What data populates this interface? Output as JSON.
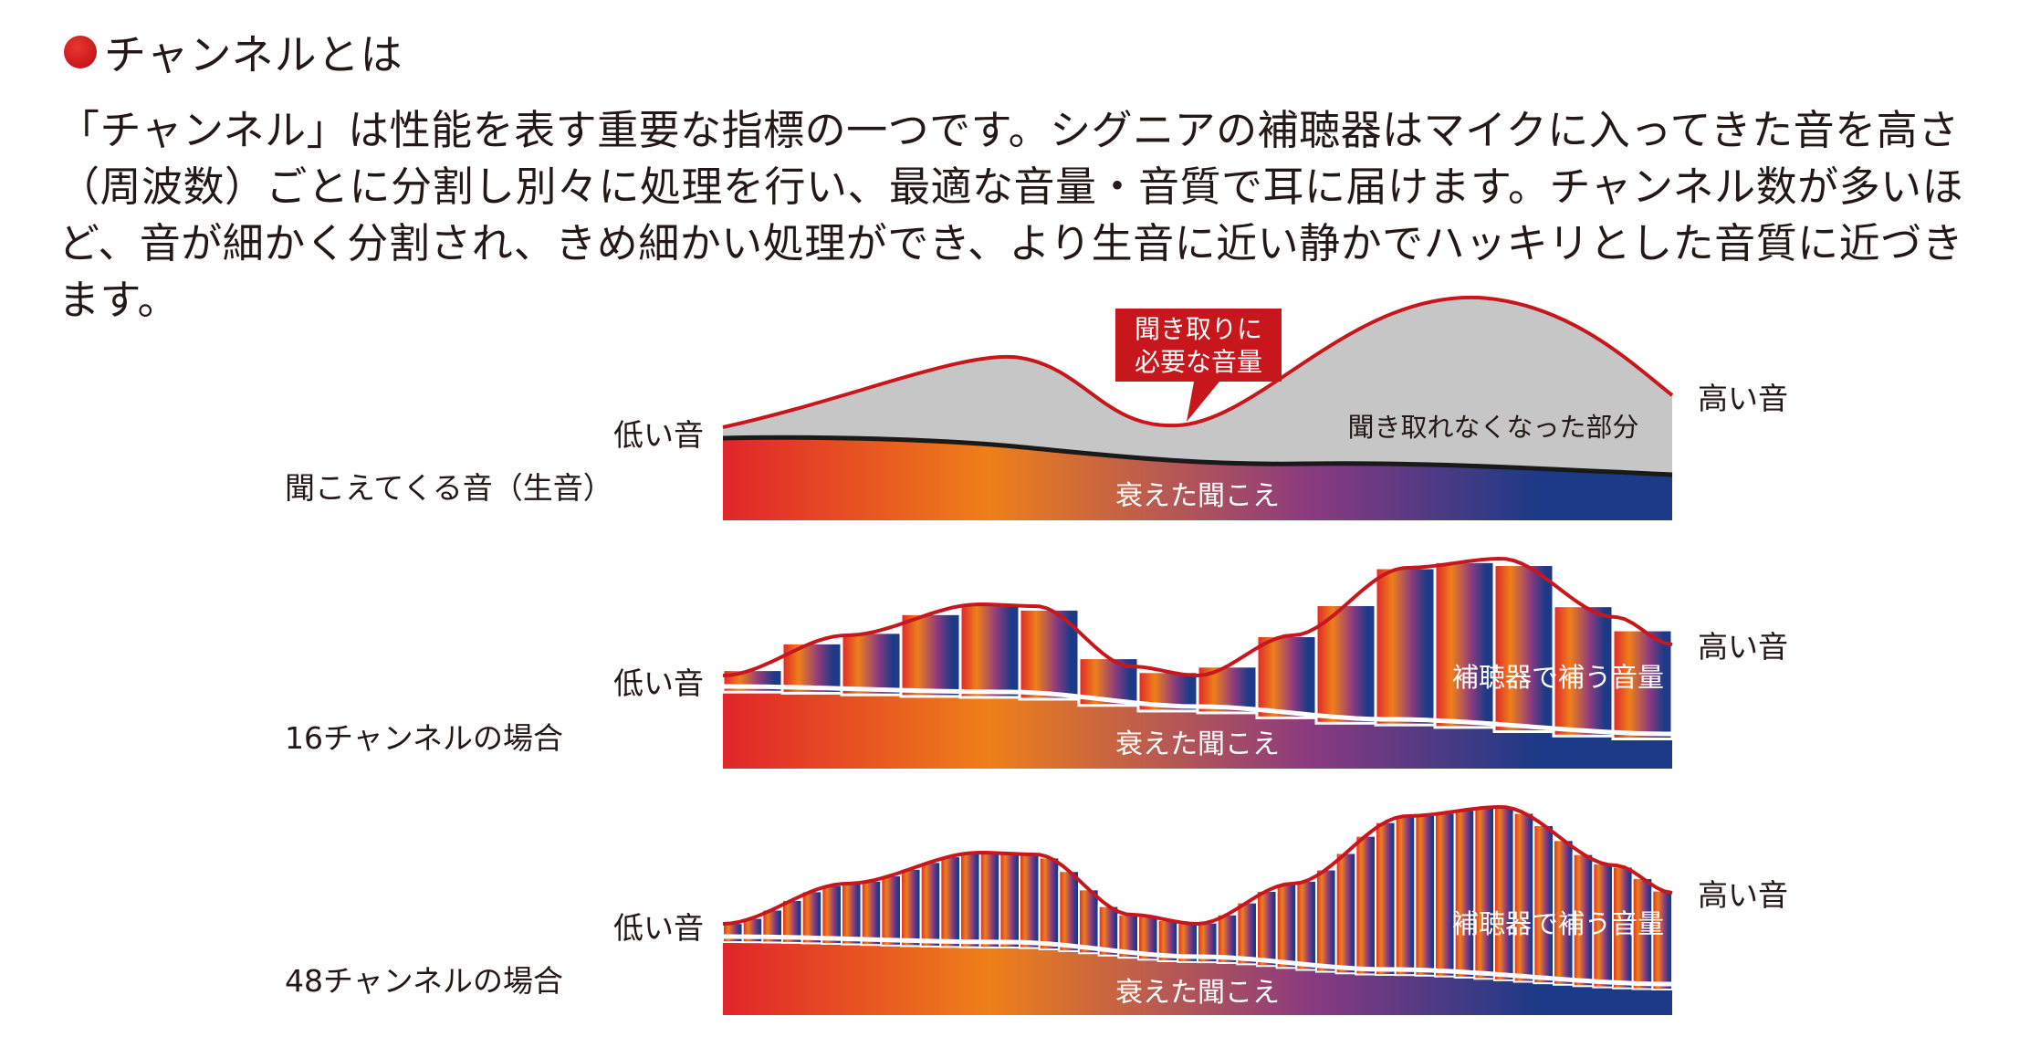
{
  "heading": "チャンネルとは",
  "intro": "「チャンネル」は性能を表す重要な指標の一つです。シグニアの補聴器はマイクに入ってきた音を高さ（周波数）ごとに分割し別々に処理を行い、最適な音量・音質で耳に届けます。チャンネル数が多いほど、音が細かく分割され、きめ細かい処理ができ、より生音に近い静かでハッキリとした音質に近づきます。",
  "low_label": "低い音",
  "high_label": "高い音",
  "callout": [
    "聞き取りに",
    "必要な音量"
  ],
  "lost_label": "聞き取れなくなった部分",
  "impaired_label": "衰えた聞こえ",
  "compensation_label": "補聴器で補う音量",
  "rows": [
    {
      "label": "聞こえてくる音（生音）",
      "channels": 0
    },
    {
      "label": "16チャンネルの場合",
      "channels": 16
    },
    {
      "label": "48チャンネルの場合",
      "channels": 48
    }
  ],
  "colors": {
    "accent_red": "#c8161d",
    "low_freq": "#e0252a",
    "mid_freq": "#ee7f1a",
    "purple": "#8a3a80",
    "high_freq": "#1c3a87",
    "lost_gray": "#c6c6c6"
  }
}
